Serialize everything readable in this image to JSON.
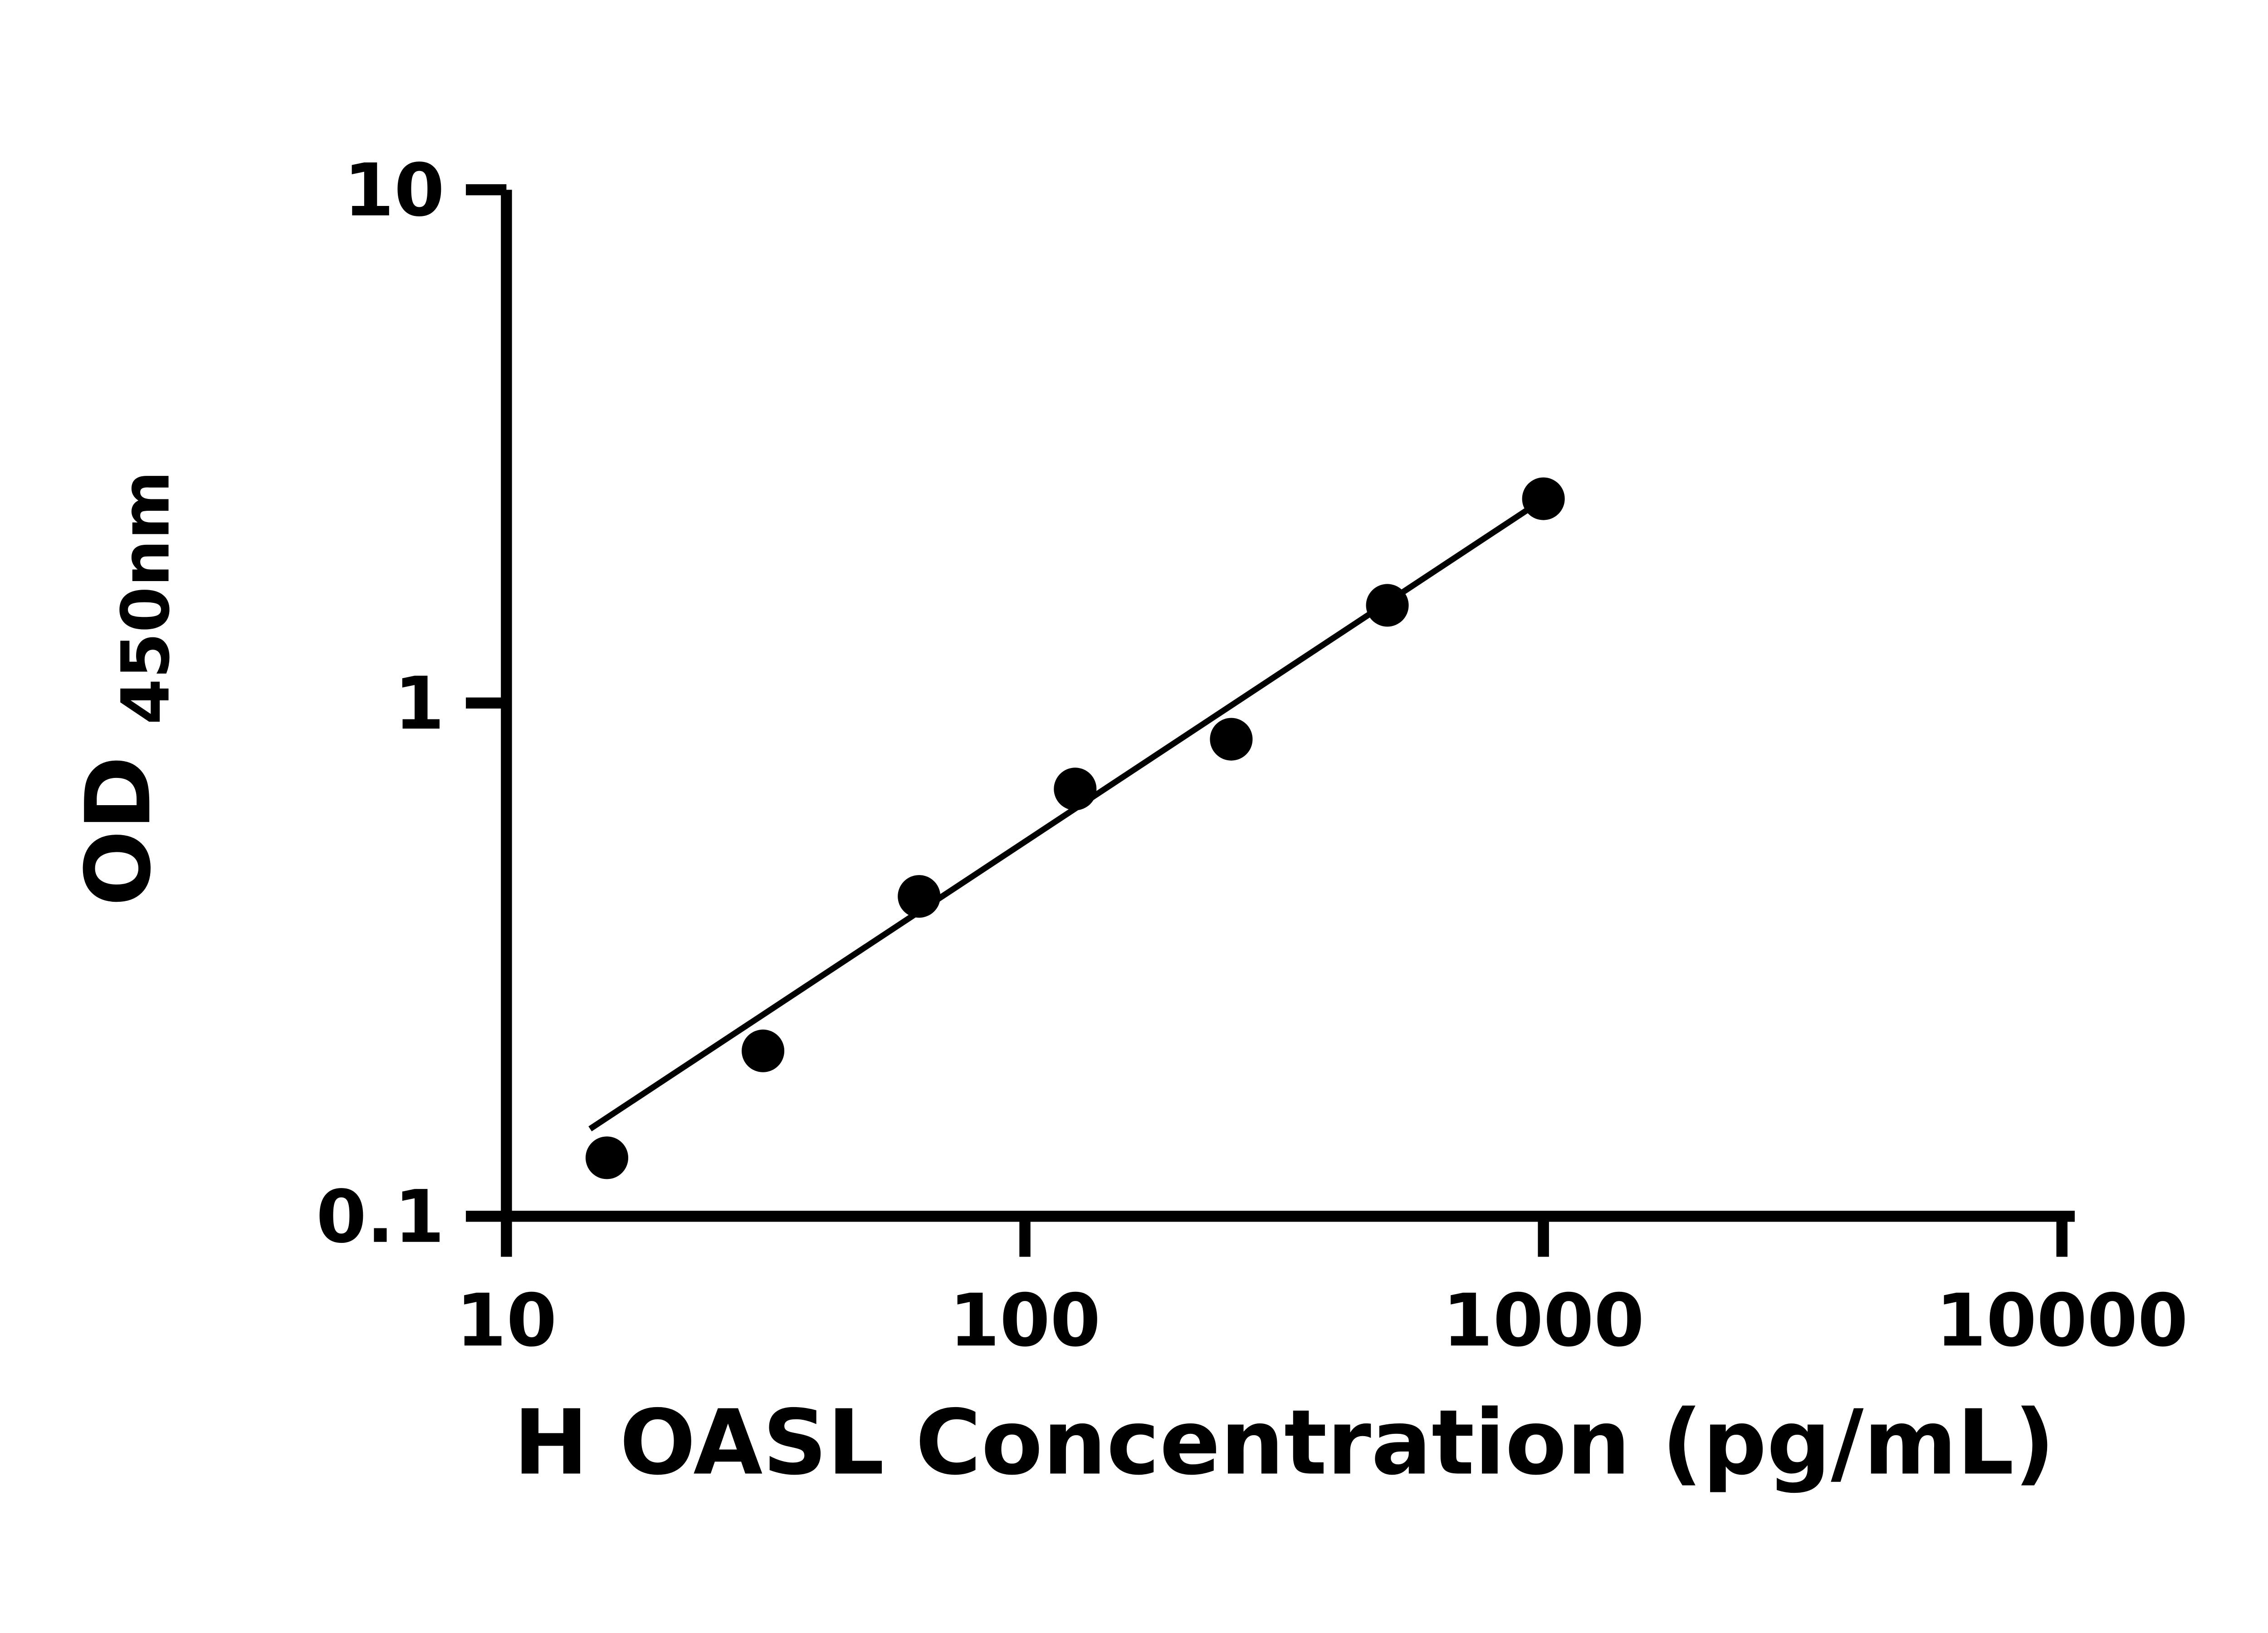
{
  "figure": {
    "background": "#ffffff"
  },
  "chart_data": {
    "type": "scatter",
    "title": "",
    "xlabel": "H OASL Concentration (pg/mL)",
    "ylabel_main": "OD",
    "ylabel_sub": "450nm",
    "x_scale": "log",
    "y_scale": "log",
    "xlim": [
      10,
      10000
    ],
    "ylim": [
      0.1,
      10
    ],
    "x_ticks": [
      10,
      100,
      1000,
      10000
    ],
    "x_tick_labels": [
      "10",
      "100",
      "1000",
      "10000"
    ],
    "y_ticks": [
      0.1,
      1,
      10
    ],
    "y_tick_labels": [
      "0.1",
      "1",
      "10"
    ],
    "grid": "off",
    "legend": "none",
    "series": [
      {
        "name": "standard-curve-points",
        "type": "scatter",
        "x": [
          15.625,
          31.25,
          62.5,
          125,
          250,
          500,
          1000
        ],
        "y": [
          0.13,
          0.21,
          0.42,
          0.68,
          0.85,
          1.55,
          2.5
        ]
      }
    ],
    "trendline": {
      "type": "linear-loglog",
      "x1": 14.5,
      "y1": 0.148,
      "x2": 1040,
      "y2": 2.56
    },
    "marker_color": "#000000",
    "line_color": "#000000",
    "axis_color": "#000000"
  }
}
